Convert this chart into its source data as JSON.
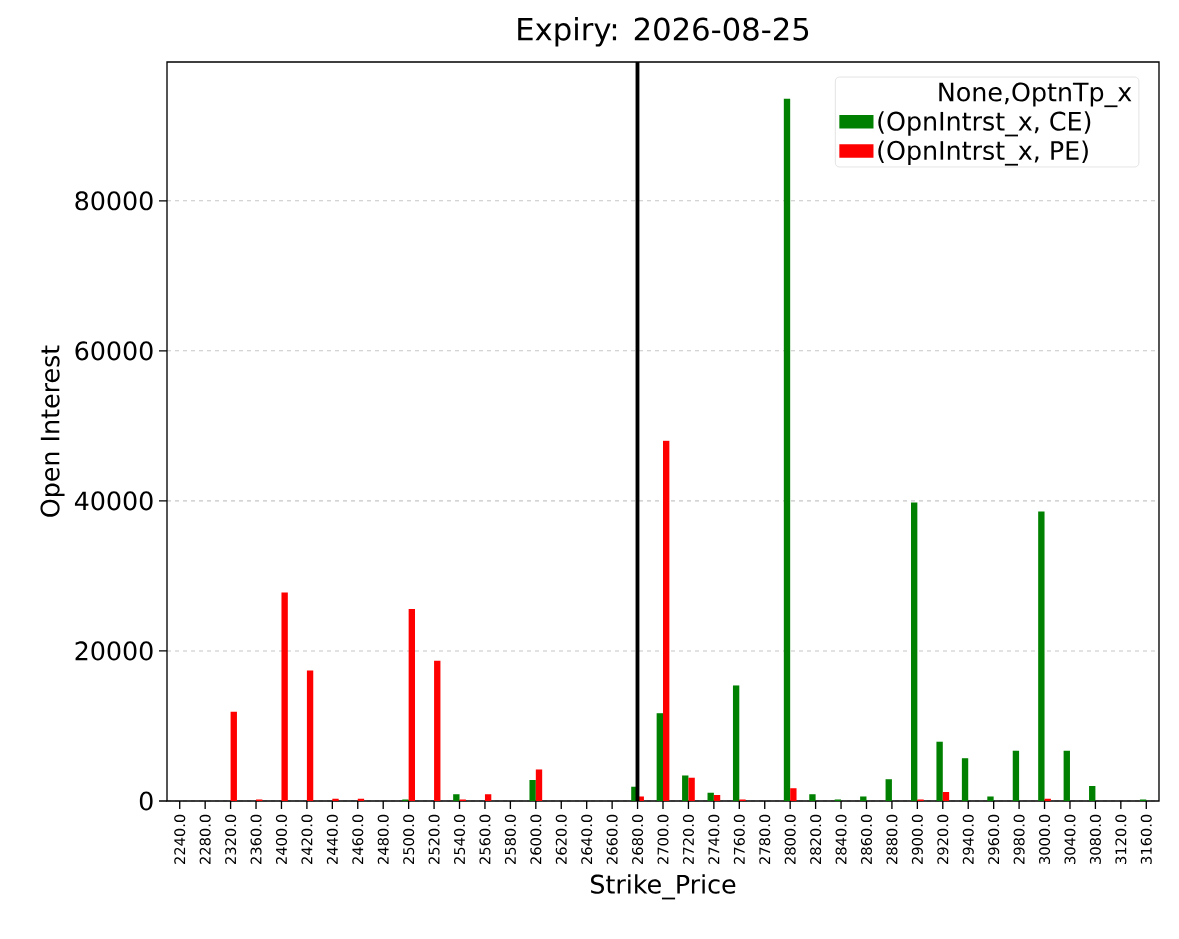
{
  "chart_data": {
    "type": "bar",
    "title": "Expiry: 2026-08-25",
    "xlabel": "Strike_Price",
    "ylabel": "Open Interest",
    "legend_title": "None,OptnTp_x",
    "categories": [
      "2240.0",
      "2280.0",
      "2320.0",
      "2360.0",
      "2400.0",
      "2420.0",
      "2440.0",
      "2460.0",
      "2480.0",
      "2500.0",
      "2520.0",
      "2540.0",
      "2560.0",
      "2580.0",
      "2600.0",
      "2620.0",
      "2640.0",
      "2660.0",
      "2680.0",
      "2700.0",
      "2720.0",
      "2740.0",
      "2760.0",
      "2780.0",
      "2800.0",
      "2820.0",
      "2840.0",
      "2860.0",
      "2880.0",
      "2900.0",
      "2920.0",
      "2940.0",
      "2960.0",
      "2980.0",
      "3000.0",
      "3040.0",
      "3080.0",
      "3120.0",
      "3160.0"
    ],
    "series": [
      {
        "name": "(OpnIntrst_x, CE)",
        "color": "#008000",
        "values": [
          0,
          0,
          0,
          0,
          0,
          0,
          0,
          0,
          0,
          200,
          0,
          900,
          0,
          0,
          2800,
          0,
          0,
          0,
          1900,
          11700,
          3400,
          1100,
          15400,
          0,
          93600,
          900,
          200,
          600,
          2900,
          39800,
          7900,
          5700,
          600,
          6700,
          38600,
          6700,
          2000,
          0,
          200
        ]
      },
      {
        "name": "(OpnIntrst_x, PE)",
        "color": "#ff0000",
        "values": [
          0,
          0,
          11900,
          200,
          27800,
          17400,
          300,
          300,
          0,
          25600,
          18700,
          200,
          900,
          0,
          4200,
          0,
          0,
          0,
          600,
          48000,
          3100,
          800,
          200,
          0,
          1700,
          0,
          0,
          0,
          0,
          200,
          1200,
          0,
          0,
          0,
          300,
          0,
          0,
          0,
          0
        ]
      }
    ],
    "ylim": [
      0,
      98500
    ],
    "yticks": [
      0,
      20000,
      40000,
      60000,
      80000
    ],
    "grid": "y",
    "legend": "top right",
    "ref_lines": [
      {
        "axis": "x",
        "value": "2680.0",
        "color": "#000000"
      }
    ]
  }
}
